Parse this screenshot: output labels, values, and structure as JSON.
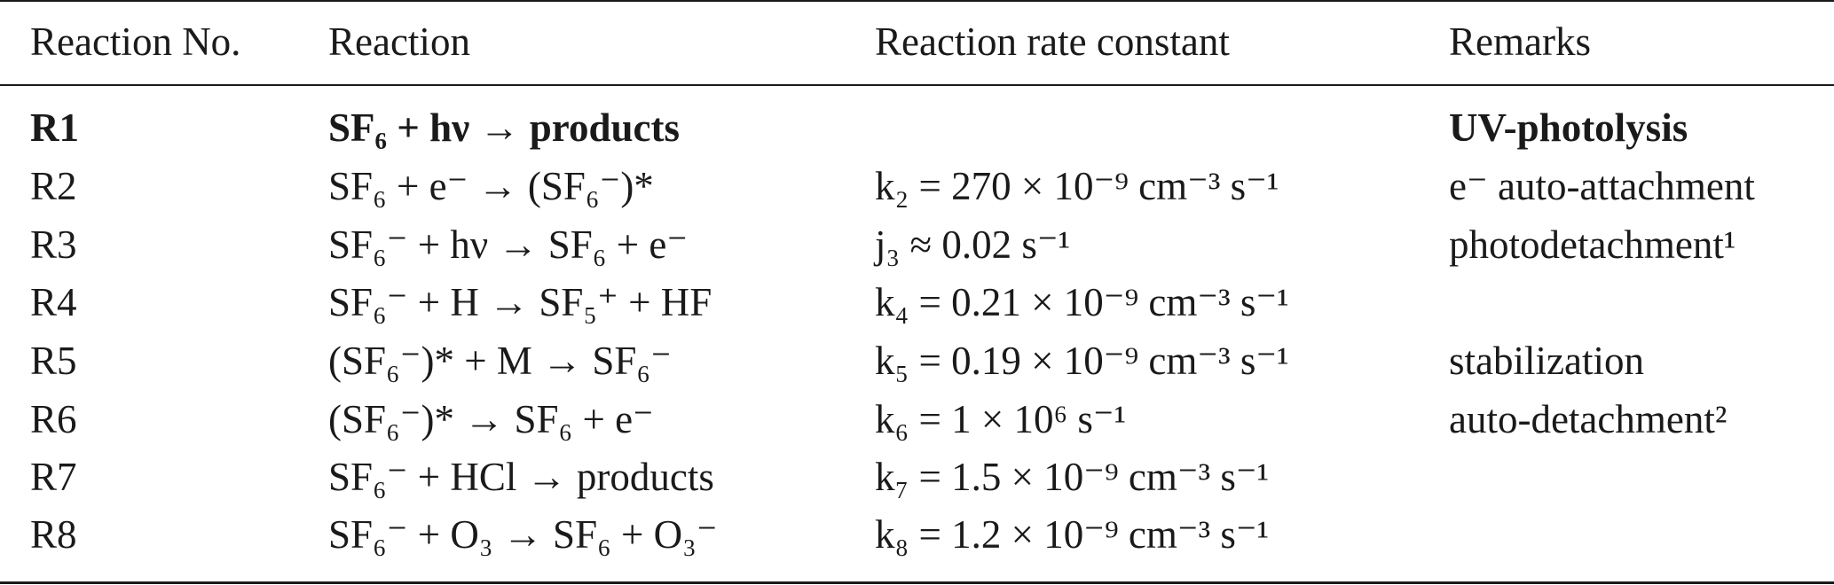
{
  "table": {
    "headers": [
      "Reaction No.",
      "Reaction",
      "Reaction rate constant",
      "Remarks"
    ],
    "rows": [
      {
        "no": "R1",
        "reaction": "SF₆ + hν → products",
        "rate": "",
        "remarks": "UV-photolysis"
      },
      {
        "no": "R2",
        "reaction": "SF₆ + e⁻ → (SF₆⁻)*",
        "rate": "k₂ = 270 × 10⁻⁹ cm⁻³ s⁻¹",
        "remarks": "e⁻ auto-attachment"
      },
      {
        "no": "R3",
        "reaction": "SF₆⁻ + hν → SF₆ + e⁻",
        "rate": "j₃ ≈ 0.02 s⁻¹",
        "remarks": "photodetachment¹"
      },
      {
        "no": "R4",
        "reaction": "SF₆⁻ + H → SF₅⁺ + HF",
        "rate": "k₄ = 0.21 × 10⁻⁹ cm⁻³ s⁻¹",
        "remarks": ""
      },
      {
        "no": "R5",
        "reaction": "(SF₆⁻)* + M → SF₆⁻",
        "rate": "k₅ = 0.19 × 10⁻⁹ cm⁻³ s⁻¹",
        "remarks": "stabilization"
      },
      {
        "no": "R6",
        "reaction": "(SF₆⁻)* → SF₆ + e⁻",
        "rate": "k₆ = 1 × 10⁶ s⁻¹",
        "remarks": "auto-detachment²"
      },
      {
        "no": "R7",
        "reaction": "SF₆⁻ + HCl → products",
        "rate": "k₇ = 1.5 × 10⁻⁹ cm⁻³ s⁻¹",
        "remarks": ""
      },
      {
        "no": "R8",
        "reaction": "SF₆⁻ + O₃ → SF₆ + O₃⁻",
        "rate": "k₈ = 1.2 × 10⁻⁹ cm⁻³ s⁻¹",
        "remarks": ""
      }
    ]
  }
}
